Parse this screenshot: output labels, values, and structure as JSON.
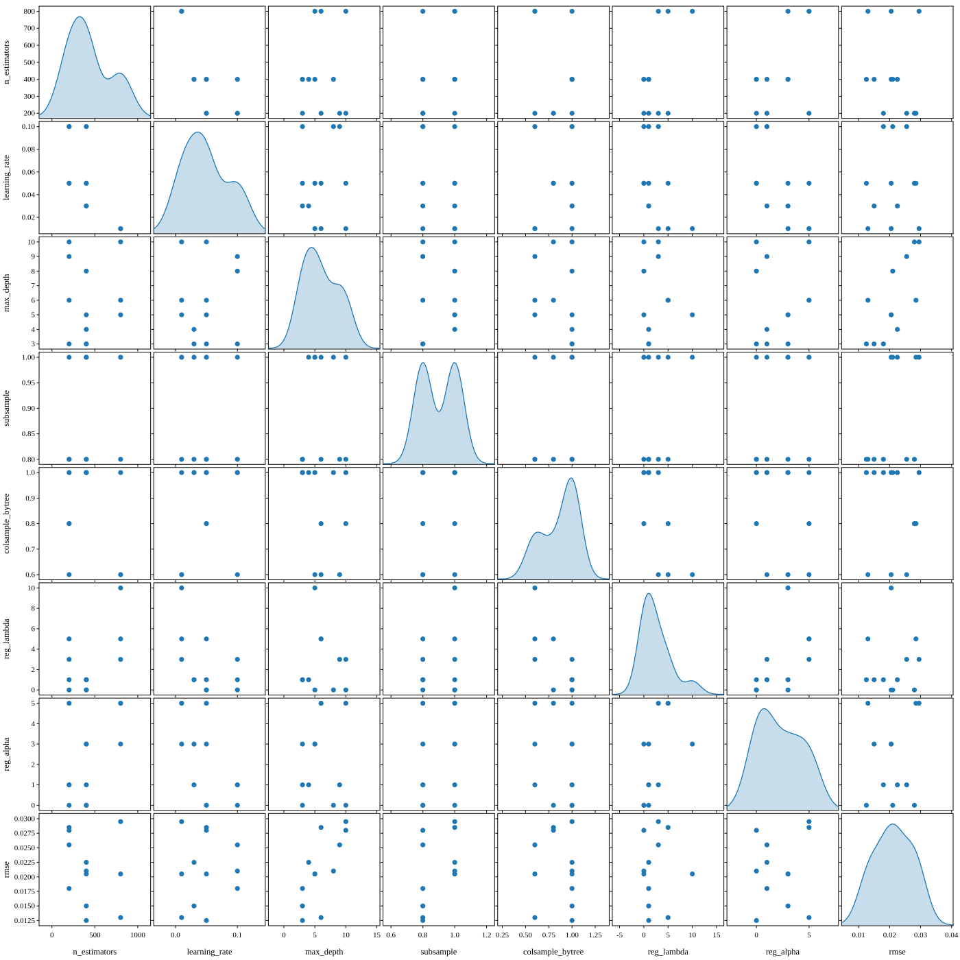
{
  "chart_data": {
    "type": "scatter",
    "subtype": "pairplot-matrix",
    "grid": "8x8",
    "diagonal": "kde",
    "legend_position": "none",
    "style": {
      "accent": "#1f77b4",
      "kde_fill_opacity": 0.25,
      "background": "#ffffff",
      "spine": "#000000"
    },
    "variables": [
      {
        "name": "n_estimators",
        "xlim": [
          -150,
          1150
        ],
        "ylim": [
          170,
          830
        ],
        "xticks": [
          0,
          500,
          1000
        ],
        "xticklabels": [
          "0",
          "500",
          "1000"
        ],
        "yticks": [
          200,
          300,
          400,
          500,
          600,
          700,
          800
        ],
        "yticklabels": [
          "200",
          "300",
          "400",
          "500",
          "600",
          "700",
          "800"
        ]
      },
      {
        "name": "learning_rate",
        "xlim": [
          -0.035,
          0.145
        ],
        "ylim": [
          0.0055,
          0.1045
        ],
        "xticks": [
          0.0,
          0.1
        ],
        "xticklabels": [
          "0.0",
          "0.1"
        ],
        "yticks": [
          0.02,
          0.04,
          0.06,
          0.08,
          0.1
        ],
        "yticklabels": [
          "0.02",
          "0.04",
          "0.06",
          "0.08",
          "0.10"
        ]
      },
      {
        "name": "max_depth",
        "xlim": [
          -2.5,
          15.5
        ],
        "ylim": [
          2.65,
          10.35
        ],
        "xticks": [
          0,
          5,
          10,
          15
        ],
        "xticklabels": [
          "0",
          "5",
          "10",
          "15"
        ],
        "yticks": [
          3,
          4,
          5,
          6,
          7,
          8,
          9,
          10
        ],
        "yticklabels": [
          "3",
          "4",
          "5",
          "6",
          "7",
          "8",
          "9",
          "10"
        ]
      },
      {
        "name": "subsample",
        "xlim": [
          0.55,
          1.25
        ],
        "ylim": [
          0.79,
          1.01
        ],
        "xticks": [
          0.6,
          0.8,
          1.0,
          1.2
        ],
        "xticklabels": [
          "0.6",
          "0.8",
          "1.0",
          "1.2"
        ],
        "yticks": [
          0.8,
          0.85,
          0.9,
          0.95,
          1.0
        ],
        "yticklabels": [
          "0.80",
          "0.85",
          "0.90",
          "0.95",
          "1.00"
        ]
      },
      {
        "name": "colsample_bytree",
        "xlim": [
          0.2,
          1.4
        ],
        "ylim": [
          0.58,
          1.02
        ],
        "xticks": [
          0.25,
          0.5,
          0.75,
          1.0,
          1.25
        ],
        "xticklabels": [
          "0.25",
          "0.50",
          "0.75",
          "1.00",
          "1.25"
        ],
        "yticks": [
          0.6,
          0.7,
          0.8,
          0.9,
          1.0
        ],
        "yticklabels": [
          "0.6",
          "0.7",
          "0.8",
          "0.9",
          "1.0"
        ]
      },
      {
        "name": "reg_lambda",
        "xlim": [
          -6.5,
          16.5
        ],
        "ylim": [
          -0.5,
          10.5
        ],
        "xticks": [
          -5,
          0,
          5,
          10,
          15
        ],
        "xticklabels": [
          "-5",
          "0",
          "5",
          "10",
          "15"
        ],
        "yticks": [
          0,
          2,
          4,
          6,
          8,
          10
        ],
        "yticklabels": [
          "0",
          "2",
          "4",
          "6",
          "8",
          "10"
        ]
      },
      {
        "name": "reg_alpha",
        "xlim": [
          -2.8,
          7.8
        ],
        "ylim": [
          -0.25,
          5.25
        ],
        "xticks": [
          0,
          5
        ],
        "xticklabels": [
          "0",
          "5"
        ],
        "yticks": [
          0,
          1,
          2,
          3,
          4,
          5
        ],
        "yticklabels": [
          "0",
          "1",
          "2",
          "3",
          "4",
          "5"
        ]
      },
      {
        "name": "rmse",
        "xlim": [
          0.0045,
          0.0405
        ],
        "ylim": [
          0.0116,
          0.0309
        ],
        "xticks": [
          0.01,
          0.02,
          0.03,
          0.04
        ],
        "xticklabels": [
          "0.01",
          "0.02",
          "0.03",
          "0.04"
        ],
        "yticks": [
          0.0125,
          0.015,
          0.0175,
          0.02,
          0.0225,
          0.025,
          0.0275,
          0.03
        ],
        "yticklabels": [
          "0.0125",
          "0.0150",
          "0.0175",
          "0.0200",
          "0.0225",
          "0.0250",
          "0.0275",
          "0.0300"
        ]
      }
    ],
    "points": [
      {
        "n_estimators": 400,
        "learning_rate": 0.05,
        "max_depth": 3,
        "subsample": 0.8,
        "colsample_bytree": 1.0,
        "reg_lambda": 1,
        "reg_alpha": 0,
        "rmse": 0.0125
      },
      {
        "n_estimators": 400,
        "learning_rate": 0.03,
        "max_depth": 4,
        "subsample": 1.0,
        "colsample_bytree": 1.0,
        "reg_lambda": 1,
        "reg_alpha": 1,
        "rmse": 0.0225
      },
      {
        "n_estimators": 200,
        "learning_rate": 0.05,
        "max_depth": 6,
        "subsample": 1.0,
        "colsample_bytree": 0.8,
        "reg_lambda": 5,
        "reg_alpha": 5,
        "rmse": 0.0285
      },
      {
        "n_estimators": 800,
        "learning_rate": 0.01,
        "max_depth": 10,
        "subsample": 1.0,
        "colsample_bytree": 1.0,
        "reg_lambda": 3,
        "reg_alpha": 5,
        "rmse": 0.0295
      },
      {
        "n_estimators": 400,
        "learning_rate": 0.05,
        "max_depth": 5,
        "subsample": 1.0,
        "colsample_bytree": 1.0,
        "reg_lambda": 0,
        "reg_alpha": 3,
        "rmse": 0.0205
      },
      {
        "n_estimators": 200,
        "learning_rate": 0.1,
        "max_depth": 3,
        "subsample": 0.8,
        "colsample_bytree": 1.0,
        "reg_lambda": 1,
        "reg_alpha": 1,
        "rmse": 0.018
      },
      {
        "n_estimators": 800,
        "learning_rate": 0.01,
        "max_depth": 5,
        "subsample": 1.0,
        "colsample_bytree": 0.6,
        "reg_lambda": 10,
        "reg_alpha": 3,
        "rmse": 0.0205
      },
      {
        "n_estimators": 400,
        "learning_rate": 0.1,
        "max_depth": 8,
        "subsample": 1.0,
        "colsample_bytree": 1.0,
        "reg_lambda": 0,
        "reg_alpha": 0,
        "rmse": 0.021
      },
      {
        "n_estimators": 200,
        "learning_rate": 0.05,
        "max_depth": 10,
        "subsample": 0.8,
        "colsample_bytree": 0.8,
        "reg_lambda": 0,
        "reg_alpha": 0,
        "rmse": 0.028
      },
      {
        "n_estimators": 400,
        "learning_rate": 0.03,
        "max_depth": 3,
        "subsample": 0.8,
        "colsample_bytree": 1.0,
        "reg_lambda": 1,
        "reg_alpha": 3,
        "rmse": 0.015
      },
      {
        "n_estimators": 800,
        "learning_rate": 0.01,
        "max_depth": 6,
        "subsample": 0.8,
        "colsample_bytree": 0.6,
        "reg_lambda": 5,
        "reg_alpha": 5,
        "rmse": 0.013
      },
      {
        "n_estimators": 200,
        "learning_rate": 0.1,
        "max_depth": 9,
        "subsample": 0.8,
        "colsample_bytree": 0.6,
        "reg_lambda": 3,
        "reg_alpha": 1,
        "rmse": 0.0255
      }
    ]
  }
}
